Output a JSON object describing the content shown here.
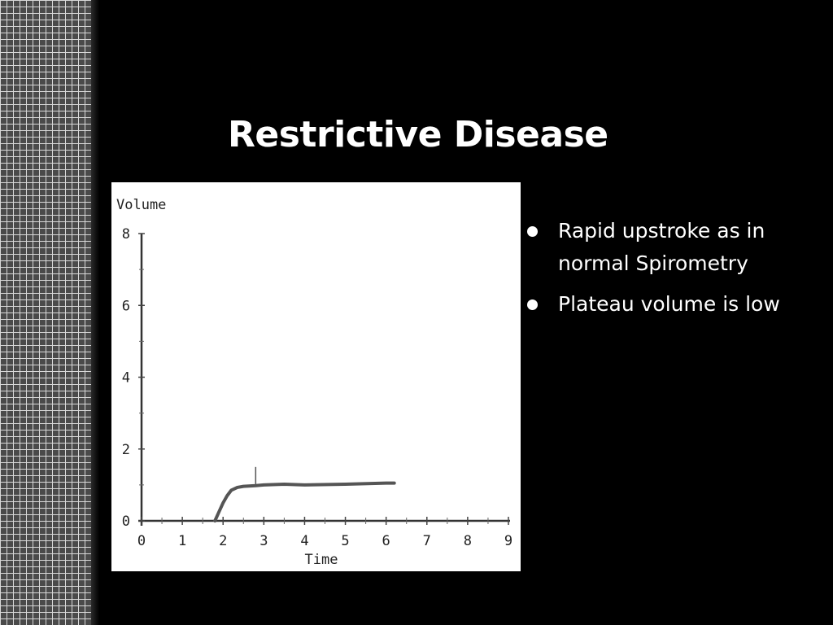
{
  "slide": {
    "title": "Restrictive Disease",
    "bullets": [
      "Rapid upstroke as in normal Spirometry",
      "Plateau volume is low"
    ]
  },
  "chart_data": {
    "type": "line",
    "xlabel": "Time",
    "ylabel": "Volume",
    "xlim": [
      0,
      9
    ],
    "ylim": [
      0,
      8
    ],
    "x_ticks": [
      "0",
      "1",
      "2",
      "3",
      "4",
      "5",
      "6",
      "7",
      "8",
      "9"
    ],
    "y_ticks": [
      "0",
      "2",
      "4",
      "6",
      "8"
    ],
    "grid": false,
    "series": [
      {
        "x": [
          1.8,
          1.9,
          2.0,
          2.1,
          2.2,
          2.35,
          2.5,
          2.8,
          3.0,
          3.5,
          4.0,
          5.0,
          6.0,
          6.2
        ],
        "y": [
          0.0,
          0.25,
          0.5,
          0.7,
          0.85,
          0.93,
          0.96,
          0.98,
          1.0,
          1.02,
          1.0,
          1.02,
          1.05,
          1.05
        ],
        "color": "#555555"
      }
    ],
    "annotations": [
      {
        "type": "marker-line",
        "x": 2.8,
        "y_from": 0.95,
        "y_to": 1.5
      }
    ]
  }
}
